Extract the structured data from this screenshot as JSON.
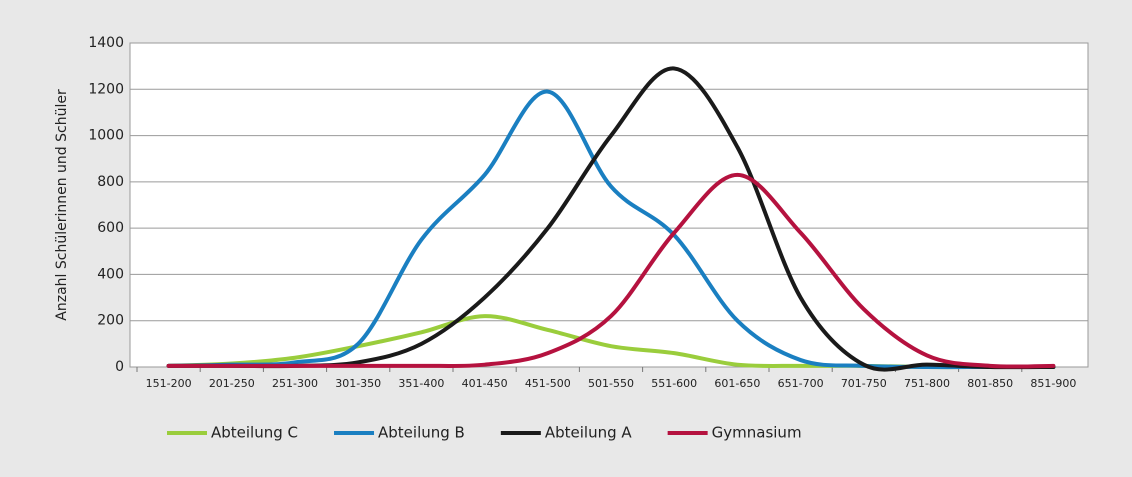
{
  "chart_data": {
    "type": "line",
    "y_label": "Anzahl Schülerinnen und Schüler",
    "categories": [
      "151-200",
      "201-250",
      "251-300",
      "301-350",
      "351-400",
      "401-450",
      "451-500",
      "501-550",
      "551-600",
      "601-650",
      "651-700",
      "701-750",
      "751-800",
      "801-850",
      "851-900"
    ],
    "series": [
      {
        "name": "Abteilung C",
        "color": "#9acd3c",
        "values": [
          5,
          15,
          40,
          90,
          150,
          220,
          160,
          90,
          60,
          10,
          5,
          5,
          0,
          0,
          0
        ]
      },
      {
        "name": "Abteilung B",
        "color": "#1a7fc1",
        "values": [
          5,
          10,
          20,
          100,
          550,
          830,
          1190,
          780,
          570,
          200,
          30,
          5,
          0,
          0,
          0
        ]
      },
      {
        "name": "Abteilung A",
        "color": "#1a1a1a",
        "values": [
          5,
          5,
          5,
          20,
          100,
          300,
          600,
          1000,
          1290,
          950,
          300,
          10,
          10,
          0,
          0
        ]
      },
      {
        "name": "Gymnasium",
        "color": "#b5123f",
        "values": [
          5,
          5,
          5,
          5,
          5,
          10,
          60,
          220,
          580,
          830,
          580,
          250,
          50,
          5,
          5
        ]
      }
    ],
    "ylim": [
      0,
      1400
    ],
    "yticks": [
      0,
      200,
      400,
      600,
      800,
      1000,
      1200,
      1400
    ],
    "grid": true
  }
}
